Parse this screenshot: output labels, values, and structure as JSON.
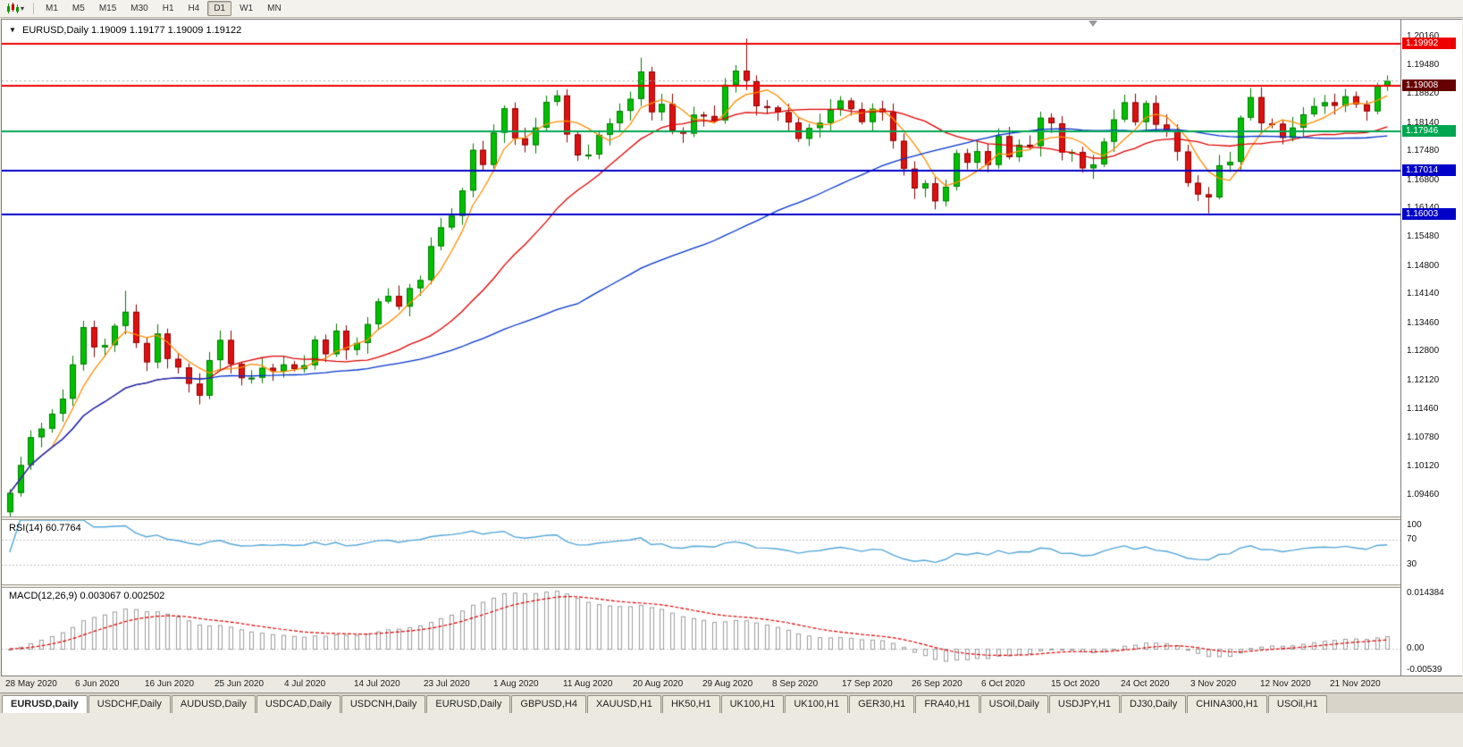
{
  "toolbar": {
    "timeframes": [
      {
        "label": "M1",
        "active": false
      },
      {
        "label": "M5",
        "active": false
      },
      {
        "label": "M15",
        "active": false
      },
      {
        "label": "M30",
        "active": false
      },
      {
        "label": "H1",
        "active": false
      },
      {
        "label": "H4",
        "active": false
      },
      {
        "label": "D1",
        "active": true
      },
      {
        "label": "W1",
        "active": false
      },
      {
        "label": "MN",
        "active": false
      }
    ]
  },
  "chart": {
    "symbol_title": "EURUSD,Daily",
    "ohlc_title": "1.19009 1.19177 1.19009 1.19122"
  },
  "indicators": {
    "rsi": {
      "name": "RSI(14)",
      "value": "60.7764"
    },
    "macd": {
      "name": "MACD(12,26,9)",
      "values": "0.003067 0.002502"
    }
  },
  "chart_data": {
    "type": "candlestick",
    "symbol": "EURUSD",
    "timeframe": "Daily",
    "title": "EURUSD,Daily 1.19009 1.19177 1.19009 1.19122",
    "ohlc_display": {
      "open": "1.19009",
      "high": "1.19177",
      "low": "1.19009",
      "close": "1.19122"
    },
    "y_axis": {
      "top": 1.2055,
      "bottom": 1.0895,
      "ticks": [
        "1.20160",
        "1.19480",
        "1.18820",
        "1.18140",
        "1.17480",
        "1.16800",
        "1.16140",
        "1.15480",
        "1.14800",
        "1.14140",
        "1.13460",
        "1.12800",
        "1.12120",
        "1.11460",
        "1.10780",
        "1.10120",
        "1.09460"
      ]
    },
    "x_labels": [
      "28 May 2020",
      "6 Jun 2020",
      "16 Jun 2020",
      "25 Jun 2020",
      "4 Jul 2020",
      "14 Jul 2020",
      "23 Jul 2020",
      "1 Aug 2020",
      "11 Aug 2020",
      "20 Aug 2020",
      "29 Aug 2020",
      "8 Sep 2020",
      "17 Sep 2020",
      "26 Sep 2020",
      "6 Oct 2020",
      "15 Oct 2020",
      "24 Oct 2020",
      "3 Nov 2020",
      "12 Nov 2020",
      "21 Nov 2020"
    ],
    "closes": [
      1.095,
      1.1015,
      1.108,
      1.11,
      1.1135,
      1.117,
      1.125,
      1.1337,
      1.129,
      1.1295,
      1.134,
      1.1373,
      1.13,
      1.1255,
      1.1322,
      1.1263,
      1.1243,
      1.1205,
      1.1177,
      1.126,
      1.1307,
      1.1251,
      1.1218,
      1.1219,
      1.1242,
      1.1234,
      1.125,
      1.1239,
      1.1248,
      1.1308,
      1.1274,
      1.1329,
      1.1284,
      1.13,
      1.1344,
      1.1397,
      1.141,
      1.1385,
      1.1428,
      1.1447,
      1.1526,
      1.157,
      1.1597,
      1.1656,
      1.1751,
      1.1716,
      1.1791,
      1.1848,
      1.1778,
      1.1762,
      1.1803,
      1.1863,
      1.1878,
      1.1787,
      1.1738,
      1.174,
      1.1786,
      1.1813,
      1.1842,
      1.187,
      1.1934,
      1.1839,
      1.1858,
      1.1796,
      1.1789,
      1.1833,
      1.183,
      1.182,
      1.1903,
      1.1936,
      1.1911,
      1.1853,
      1.185,
      1.1839,
      1.1815,
      1.1777,
      1.1802,
      1.1814,
      1.1845,
      1.1866,
      1.1846,
      1.1816,
      1.1847,
      1.1839,
      1.1772,
      1.1707,
      1.1661,
      1.1673,
      1.1631,
      1.1665,
      1.1743,
      1.1721,
      1.1748,
      1.1716,
      1.1783,
      1.1734,
      1.1763,
      1.176,
      1.1826,
      1.1813,
      1.1745,
      1.1746,
      1.1708,
      1.1717,
      1.177,
      1.1822,
      1.1862,
      1.1816,
      1.186,
      1.181,
      1.1794,
      1.1747,
      1.1674,
      1.1647,
      1.164,
      1.1715,
      1.1723,
      1.1826,
      1.1874,
      1.1813,
      1.1812,
      1.1779,
      1.1803,
      1.1834,
      1.1853,
      1.1862,
      1.1854,
      1.1876,
      1.1857,
      1.1841,
      1.1901,
      1.1912
    ],
    "wick_overrides": [
      {
        "index": 11,
        "high": 1.1422
      },
      {
        "index": 60,
        "high": 1.1966
      },
      {
        "index": 70,
        "high": 1.2011
      },
      {
        "index": 88,
        "low": 1.1612
      },
      {
        "index": 114,
        "low": 1.1603
      },
      {
        "index": 131,
        "high": 1.19177
      }
    ],
    "current_price": 1.19122,
    "hlines": [
      {
        "value": 1.19992,
        "label": "1.19992",
        "color": "#ee0000"
      },
      {
        "value": 1.19008,
        "label": "1.19008",
        "color": "#ee0000",
        "tag_color": "#660000"
      },
      {
        "value": 1.17946,
        "label": "1.17946",
        "color": "#00a651"
      },
      {
        "value": 1.17014,
        "label": "1.17014",
        "color": "#0000c8"
      },
      {
        "value": 1.16003,
        "label": "1.16003",
        "color": "#0000c8"
      }
    ],
    "moving_averages": [
      {
        "period": 5,
        "color": "#ff8c00"
      },
      {
        "period": 20,
        "color": "#e00000"
      },
      {
        "period": 55,
        "color": "#0033cc"
      }
    ],
    "rsi_panel": {
      "label": "RSI(14)",
      "value": "60.7764",
      "period": 14,
      "levels": [
        70,
        30
      ],
      "ticks": [
        {
          "text": "100",
          "value": 100
        },
        {
          "text": "70",
          "value": 70
        },
        {
          "text": "30",
          "value": 30
        }
      ],
      "range": [
        0,
        100
      ],
      "line_color": "#53a6d8"
    },
    "macd_panel": {
      "label": "MACD(12,26,9)",
      "values": "0.003067 0.002502",
      "fast": 12,
      "slow": 26,
      "signal": 9,
      "ticks": [
        {
          "text": "0.014384",
          "value": 0.014384
        },
        {
          "text": "0.00",
          "value": 0
        },
        {
          "text": "-0.00539",
          "value": -0.00539
        }
      ],
      "range": [
        -0.0068,
        0.0155
      ],
      "hist_color": "#9c9c9c",
      "signal_color": "#e00000"
    },
    "candle_colors": {
      "up_fill": "#00c000",
      "up_stroke": "#007a00",
      "down_fill": "#e01010",
      "down_stroke": "#8b0000"
    }
  },
  "tabs": [
    {
      "label": "EURUSD,Daily",
      "active": true
    },
    {
      "label": "USDCHF,Daily",
      "active": false
    },
    {
      "label": "AUDUSD,Daily",
      "active": false
    },
    {
      "label": "USDCAD,Daily",
      "active": false
    },
    {
      "label": "USDCNH,Daily",
      "active": false
    },
    {
      "label": "EURUSD,Daily",
      "active": false
    },
    {
      "label": "GBPUSD,H4",
      "active": false
    },
    {
      "label": "XAUUSD,H1",
      "active": false
    },
    {
      "label": "HK50,H1",
      "active": false
    },
    {
      "label": "UK100,H1",
      "active": false
    },
    {
      "label": "UK100,H1",
      "active": false
    },
    {
      "label": "GER30,H1",
      "active": false
    },
    {
      "label": "FRA40,H1",
      "active": false
    },
    {
      "label": "USOil,Daily",
      "active": false
    },
    {
      "label": "USDJPY,H1",
      "active": false
    },
    {
      "label": "DJ30,Daily",
      "active": false
    },
    {
      "label": "CHINA300,H1",
      "active": false
    },
    {
      "label": "USOil,H1",
      "active": false
    }
  ]
}
